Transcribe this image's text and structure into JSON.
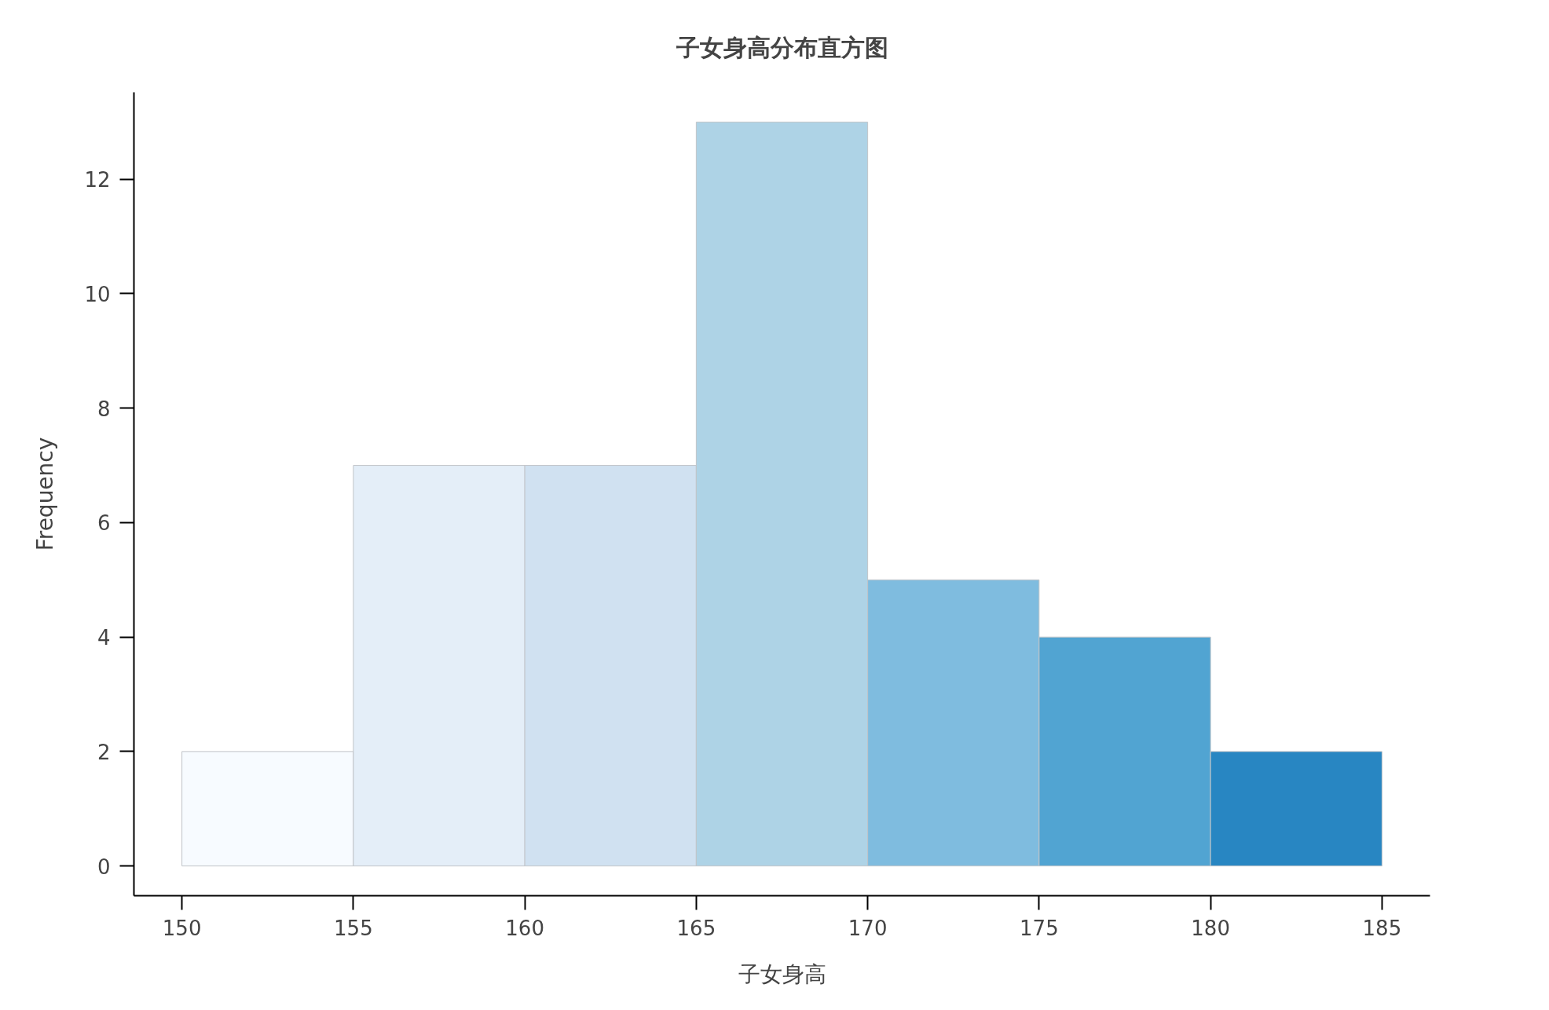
{
  "chart_data": {
    "type": "histogram",
    "title": "子女身高分布直方图",
    "xlabel": "子女身高",
    "ylabel": "Frequency",
    "bins": [
      150,
      155,
      160,
      165,
      170,
      175,
      180,
      185
    ],
    "values": [
      2,
      7,
      7,
      13,
      5,
      4,
      2
    ],
    "colors": [
      "#f7fbff",
      "#e4eef8",
      "#d0e1f1",
      "#aed3e6",
      "#7fbcdf",
      "#51a4d2",
      "#2886c2"
    ],
    "xlim": [
      148.6,
      186.4
    ],
    "xticks": [
      150,
      155,
      160,
      165,
      170,
      175,
      180,
      185
    ],
    "ylim": [
      -0.52,
      13.52
    ],
    "yticks": [
      0,
      2,
      4,
      6,
      8,
      10,
      12
    ],
    "grid": false
  }
}
